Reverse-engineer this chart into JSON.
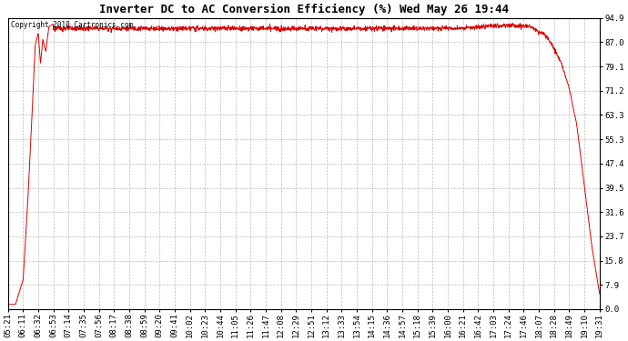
{
  "title": "Inverter DC to AC Conversion Efficiency (%) Wed May 26 19:44",
  "copyright": "Copyright 2010 Cartronics.com",
  "line_color": "#dd0000",
  "bg_color": "#ffffff",
  "plot_bg_color": "#ffffff",
  "grid_color": "#bbbbbb",
  "ylim": [
    0.0,
    94.9
  ],
  "yticks": [
    0.0,
    7.9,
    15.8,
    23.7,
    31.6,
    39.5,
    47.4,
    55.3,
    63.3,
    71.2,
    79.1,
    87.0,
    94.9
  ],
  "xtick_labels": [
    "05:21",
    "06:11",
    "06:32",
    "06:53",
    "07:14",
    "07:35",
    "07:56",
    "08:17",
    "08:38",
    "08:59",
    "09:20",
    "09:41",
    "10:02",
    "10:23",
    "10:44",
    "11:05",
    "11:26",
    "11:47",
    "12:08",
    "12:29",
    "12:51",
    "13:12",
    "13:33",
    "13:54",
    "14:15",
    "14:36",
    "14:57",
    "15:18",
    "15:39",
    "16:00",
    "16:21",
    "16:42",
    "17:03",
    "17:24",
    "17:46",
    "18:07",
    "18:28",
    "18:49",
    "19:10",
    "19:31"
  ],
  "title_fontsize": 9,
  "tick_fontsize": 6.5,
  "copyright_fontsize": 5.5
}
